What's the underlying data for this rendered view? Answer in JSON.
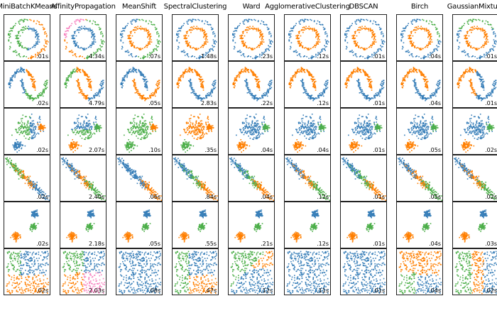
{
  "columns": [
    "MiniBatchKMeans",
    "AffinityPropagation",
    "MeanShift",
    "SpectralClustering",
    "Ward",
    "AgglomerativeClustering",
    "DBSCAN",
    "Birch",
    "GaussianMixture"
  ],
  "rows": [
    {
      "dataset": "noisy_circles",
      "times": [
        ".01s",
        "4.34s",
        ".07s",
        "1.48s",
        ".23s",
        ".12s",
        ".01s",
        ".04s",
        ".01s"
      ]
    },
    {
      "dataset": "noisy_moons",
      "times": [
        ".02s",
        "4.79s",
        ".05s",
        "2.83s",
        ".22s",
        ".12s",
        ".01s",
        ".04s",
        ".01s"
      ]
    },
    {
      "dataset": "varied",
      "times": [
        ".02s",
        "2.07s",
        ".10s",
        ".35s",
        ".04s",
        ".04s",
        ".01s",
        ".05s",
        ".02s"
      ]
    },
    {
      "dataset": "aniso",
      "times": [
        ".02s",
        "2.40s",
        ".06s",
        ".84s",
        ".04s",
        ".12s",
        ".01s",
        ".05s",
        ".02s"
      ]
    },
    {
      "dataset": "blobs",
      "times": [
        ".02s",
        "2.18s",
        ".05s",
        ".55s",
        ".21s",
        ".12s",
        ".01s",
        ".04s",
        ".03s"
      ]
    },
    {
      "dataset": "no_structure",
      "times": [
        ".02s",
        "2.03s",
        ".08s",
        ".47s",
        ".12s",
        ".11s",
        ".01s",
        ".04s",
        ".02s"
      ]
    }
  ],
  "colors": {
    "blue": "#377eb8",
    "orange": "#ff7f00",
    "green": "#4daf4a",
    "pink": "#f781bf",
    "border": "#222222"
  }
}
